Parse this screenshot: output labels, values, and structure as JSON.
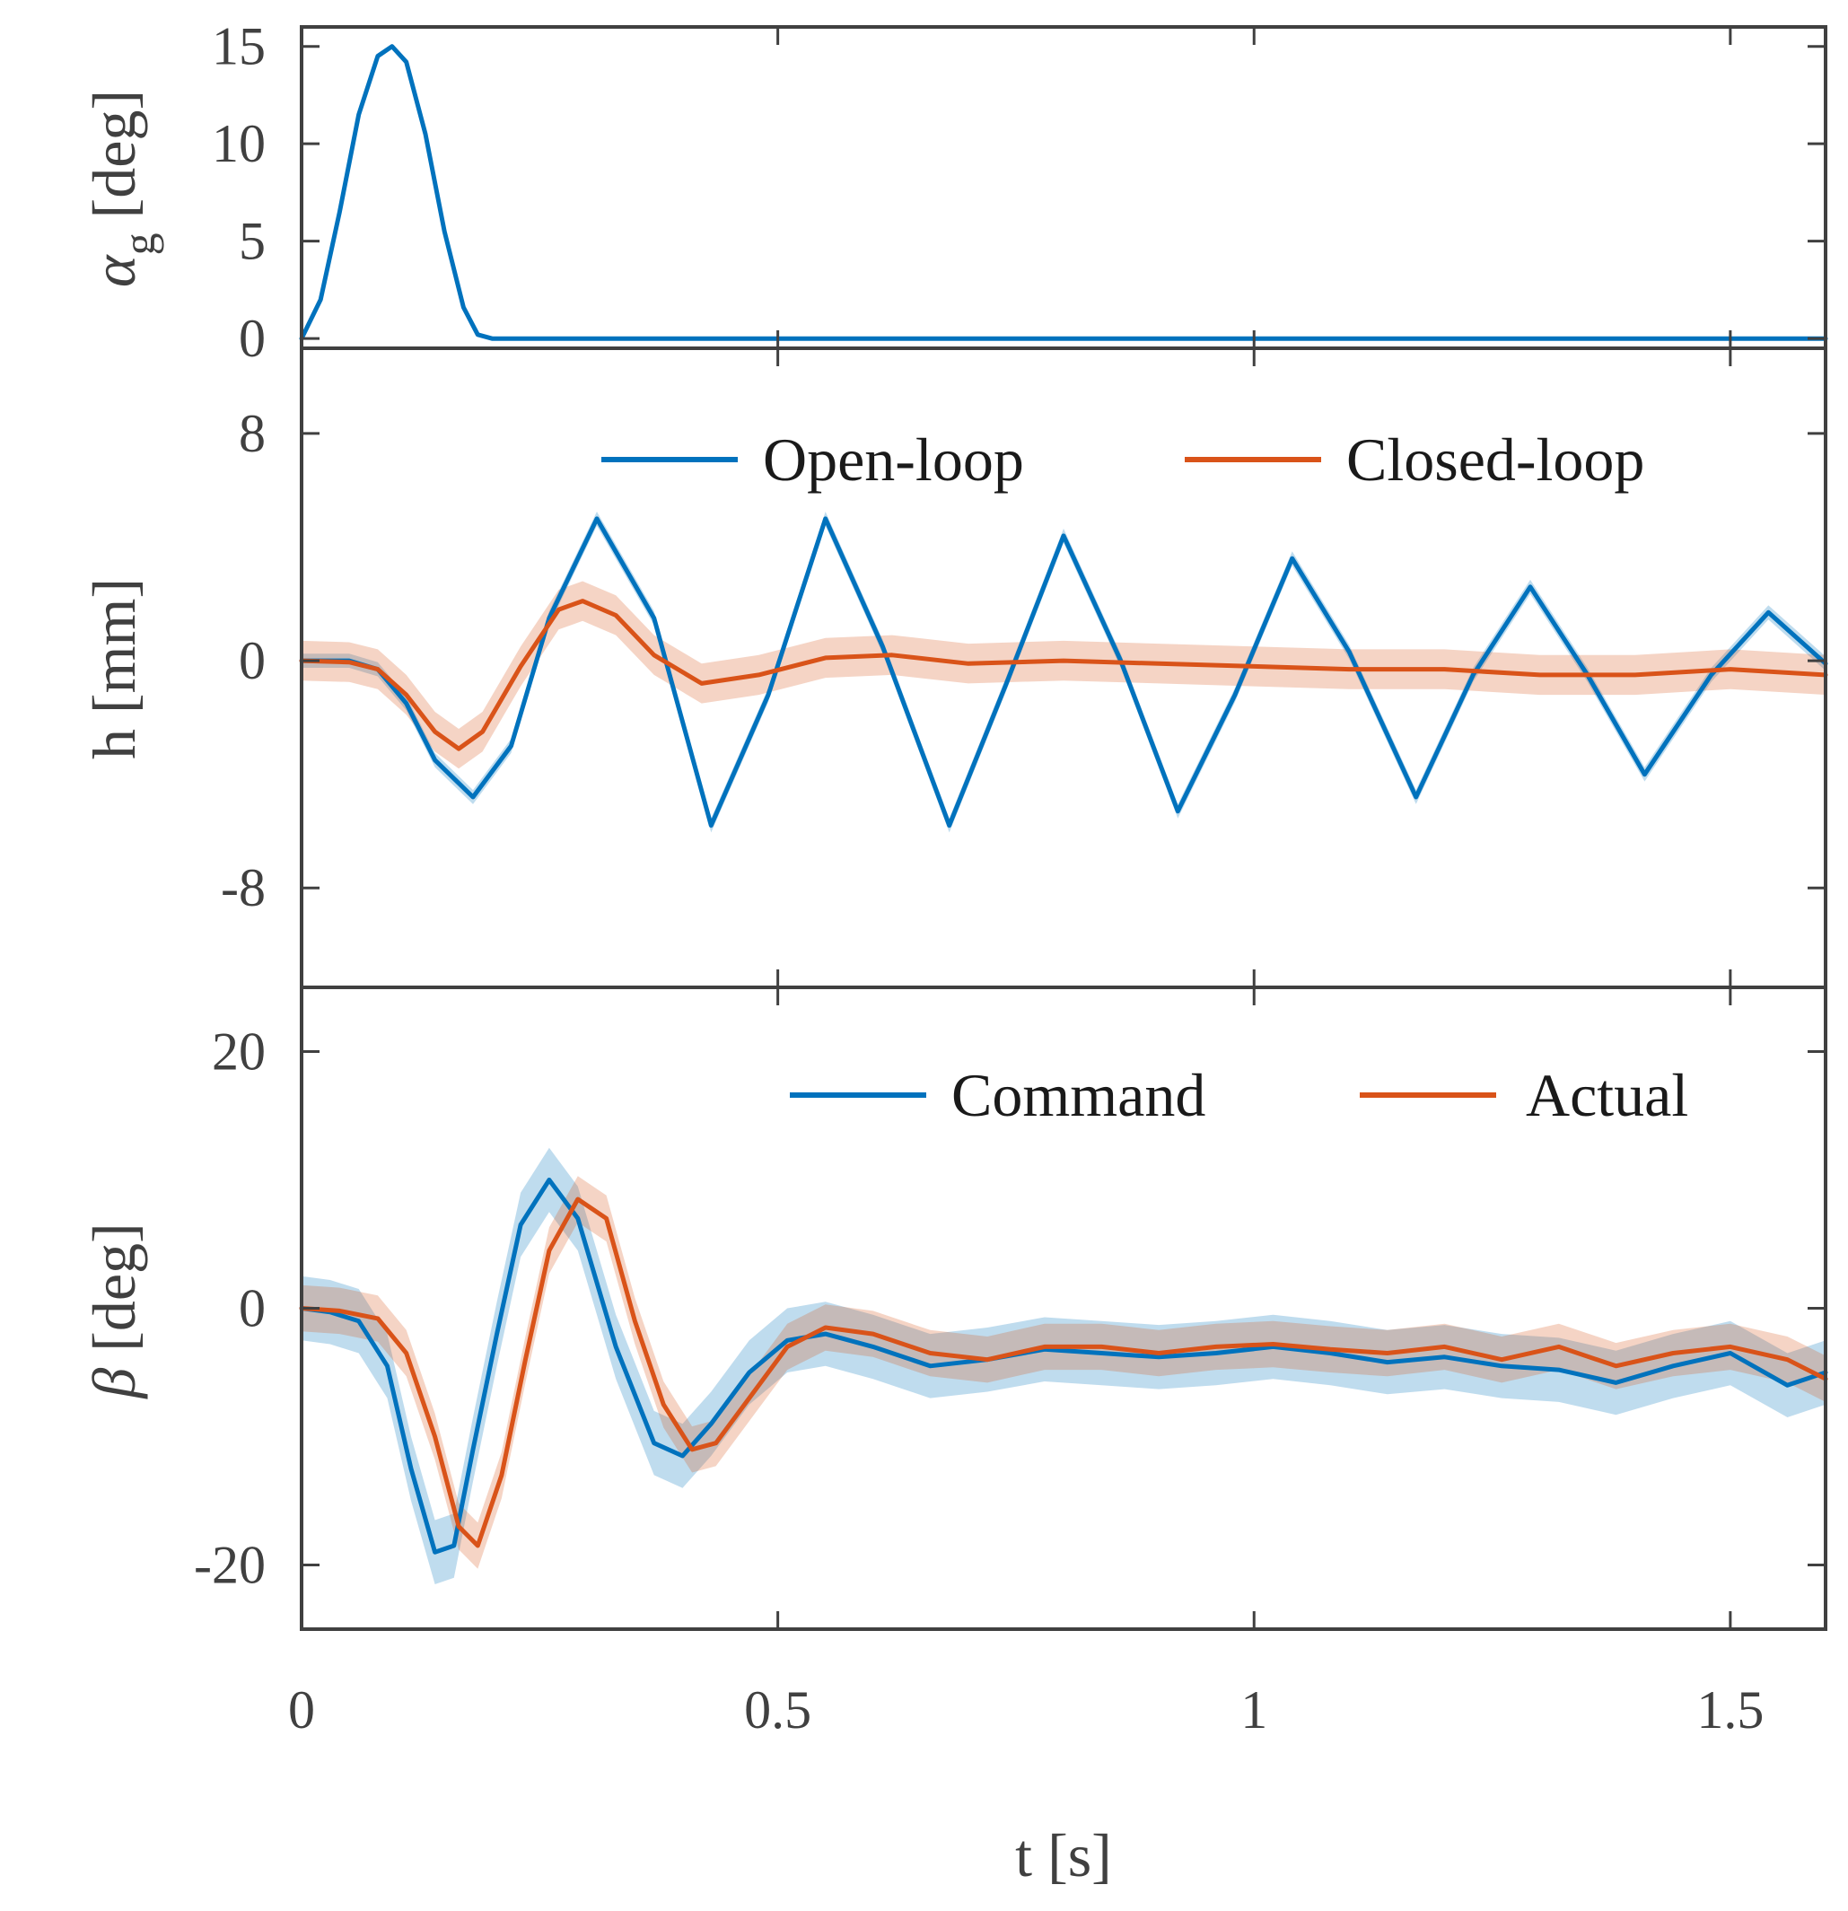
{
  "chart_data": [
    {
      "id": "alpha",
      "type": "line",
      "ylabel_main": "α",
      "ylabel_sub": "g",
      "ylabel_unit": "[deg]",
      "xlim": [
        0,
        1.6
      ],
      "ylim": [
        -0.5,
        16
      ],
      "yticks": [
        0,
        5,
        10,
        15
      ],
      "ytick_labels": [
        "0",
        "5",
        "10",
        "15"
      ],
      "series": [
        {
          "name": "alpha_g",
          "color": "#0072BD",
          "x": [
            0,
            0.02,
            0.04,
            0.06,
            0.08,
            0.095,
            0.11,
            0.13,
            0.15,
            0.17,
            0.185,
            0.2,
            0.3,
            0.5,
            0.8,
            1.0,
            1.3,
            1.6
          ],
          "y": [
            0,
            2.0,
            6.5,
            11.5,
            14.5,
            15.0,
            14.2,
            10.5,
            5.5,
            1.6,
            0.2,
            0,
            0,
            0,
            0,
            0,
            0,
            0
          ]
        }
      ]
    },
    {
      "id": "h",
      "type": "line",
      "ylabel": "h [mm]",
      "xlim": [
        0,
        1.6
      ],
      "ylim": [
        -11.5,
        11
      ],
      "yticks": [
        -8,
        0,
        8
      ],
      "ytick_labels": [
        "-8",
        "0",
        "8"
      ],
      "legend": [
        "Open-loop",
        "Closed-loop"
      ],
      "series": [
        {
          "name": "Open-loop",
          "color": "#0072BD",
          "band": 0.25,
          "x": [
            0,
            0.05,
            0.08,
            0.11,
            0.14,
            0.18,
            0.22,
            0.26,
            0.31,
            0.37,
            0.43,
            0.49,
            0.55,
            0.61,
            0.68,
            0.74,
            0.8,
            0.86,
            0.92,
            0.98,
            1.04,
            1.1,
            1.17,
            1.23,
            1.29,
            1.35,
            1.41,
            1.48,
            1.54,
            1.6
          ],
          "y": [
            0,
            0,
            -0.3,
            -1.5,
            -3.5,
            -4.8,
            -3.0,
            1.5,
            5.0,
            1.5,
            -5.8,
            -1.2,
            5.0,
            0.5,
            -5.8,
            -0.8,
            4.4,
            0.0,
            -5.3,
            -1.2,
            3.6,
            0.3,
            -4.8,
            -0.5,
            2.6,
            -0.5,
            -4.0,
            -0.5,
            1.7,
            -0.1
          ]
        },
        {
          "name": "Closed-loop",
          "color": "#D95319",
          "band": 0.7,
          "x": [
            0,
            0.05,
            0.08,
            0.11,
            0.14,
            0.165,
            0.19,
            0.23,
            0.27,
            0.295,
            0.33,
            0.37,
            0.42,
            0.48,
            0.55,
            0.62,
            0.7,
            0.8,
            0.9,
            1.0,
            1.1,
            1.2,
            1.3,
            1.4,
            1.5,
            1.6
          ],
          "y": [
            0,
            -0.05,
            -0.3,
            -1.2,
            -2.5,
            -3.1,
            -2.5,
            -0.2,
            1.8,
            2.1,
            1.6,
            0.2,
            -0.8,
            -0.5,
            0.1,
            0.2,
            -0.1,
            0.0,
            -0.1,
            -0.2,
            -0.3,
            -0.3,
            -0.5,
            -0.5,
            -0.3,
            -0.5
          ]
        }
      ]
    },
    {
      "id": "beta",
      "type": "line",
      "ylabel_main": "β",
      "ylabel_unit": "[deg]",
      "xlabel": "t [s]",
      "xlim": [
        0,
        1.6
      ],
      "ylim": [
        -25,
        25
      ],
      "yticks": [
        -20,
        0,
        20
      ],
      "ytick_labels": [
        "-20",
        "0",
        "20"
      ],
      "xticks": [
        0,
        0.5,
        1,
        1.5
      ],
      "xtick_labels": [
        "0",
        "0.5",
        "1",
        "1.5"
      ],
      "legend": [
        "Command",
        "Actual"
      ],
      "series": [
        {
          "name": "Command",
          "color": "#0072BD",
          "band": 2.5,
          "x": [
            0,
            0.03,
            0.06,
            0.09,
            0.115,
            0.14,
            0.16,
            0.18,
            0.205,
            0.23,
            0.26,
            0.29,
            0.33,
            0.37,
            0.4,
            0.43,
            0.47,
            0.51,
            0.55,
            0.6,
            0.66,
            0.72,
            0.78,
            0.84,
            0.9,
            0.96,
            1.02,
            1.08,
            1.14,
            1.2,
            1.26,
            1.32,
            1.38,
            1.44,
            1.5,
            1.56,
            1.6
          ],
          "y": [
            0,
            -0.3,
            -1.0,
            -4.5,
            -12.5,
            -19.0,
            -18.5,
            -11.0,
            -2.0,
            6.5,
            10.0,
            7.0,
            -3.0,
            -10.5,
            -11.5,
            -9.0,
            -5.0,
            -2.5,
            -2.0,
            -3.0,
            -4.5,
            -4.0,
            -3.2,
            -3.5,
            -3.8,
            -3.5,
            -3.0,
            -3.5,
            -4.2,
            -3.8,
            -4.5,
            -4.8,
            -5.8,
            -4.5,
            -3.5,
            -6.0,
            -5.0
          ]
        },
        {
          "name": "Actual",
          "color": "#D95319",
          "band": 1.8,
          "x": [
            0,
            0.04,
            0.08,
            0.11,
            0.14,
            0.165,
            0.185,
            0.21,
            0.235,
            0.26,
            0.29,
            0.32,
            0.35,
            0.38,
            0.41,
            0.435,
            0.47,
            0.51,
            0.55,
            0.6,
            0.66,
            0.72,
            0.78,
            0.84,
            0.9,
            0.96,
            1.02,
            1.08,
            1.14,
            1.2,
            1.26,
            1.32,
            1.38,
            1.44,
            1.5,
            1.56,
            1.6
          ],
          "y": [
            0,
            -0.2,
            -0.8,
            -3.5,
            -10.0,
            -17.0,
            -18.5,
            -13.0,
            -4.0,
            4.5,
            8.5,
            7.0,
            -1.0,
            -7.5,
            -11.0,
            -10.5,
            -7.0,
            -3.0,
            -1.5,
            -2.0,
            -3.5,
            -4.0,
            -3.0,
            -3.0,
            -3.5,
            -3.0,
            -2.8,
            -3.2,
            -3.5,
            -3.0,
            -4.0,
            -3.0,
            -4.5,
            -3.5,
            -3.0,
            -4.0,
            -5.5
          ]
        }
      ]
    }
  ]
}
